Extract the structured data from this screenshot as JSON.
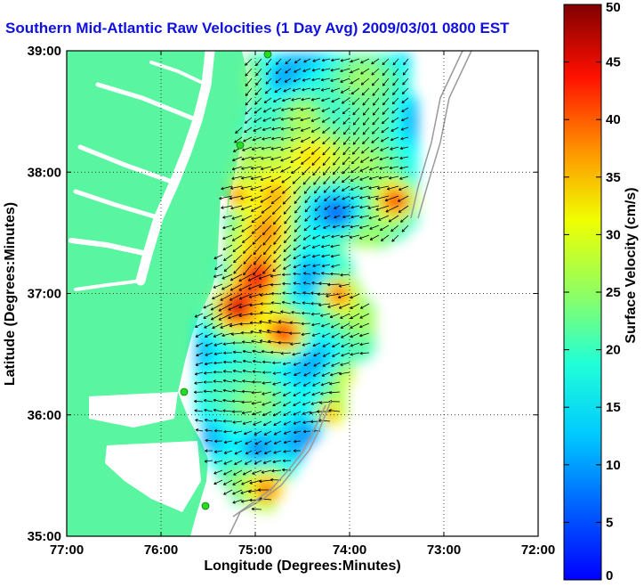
{
  "title": "Southern Mid-Atlantic Raw Velocities (1 Day Avg) 2009/03/01 0800 EST",
  "map": {
    "xlabel": "Longitude (Degrees:Minutes)",
    "ylabel": "Latitude (Degrees:Minutes)",
    "xlim": [
      -77,
      -72
    ],
    "ylim": [
      35,
      39
    ],
    "xticks": [
      {
        "value": -77,
        "label": "77:00"
      },
      {
        "value": -76,
        "label": "76:00"
      },
      {
        "value": -75,
        "label": "75:00"
      },
      {
        "value": -74,
        "label": "74:00"
      },
      {
        "value": -73,
        "label": "73:00"
      },
      {
        "value": -72,
        "label": "72:00"
      }
    ],
    "yticks": [
      {
        "value": 35,
        "label": "35:00"
      },
      {
        "value": 36,
        "label": "36:00"
      },
      {
        "value": 37,
        "label": "37:00"
      },
      {
        "value": 38,
        "label": "38:00"
      },
      {
        "value": 39,
        "label": "39:00"
      }
    ],
    "grid": "dotted",
    "land_color": "#5af5a0",
    "colors": {
      "shelf_contour": "#999999",
      "station": "#22dd22"
    }
  },
  "colorbar": {
    "label": "Surface Velocity (cm/s)",
    "min": 0,
    "max": 50,
    "ticks": [
      "0",
      "5",
      "10",
      "15",
      "20",
      "25",
      "30",
      "35",
      "40",
      "45",
      "50"
    ],
    "colormap": "jet"
  }
}
